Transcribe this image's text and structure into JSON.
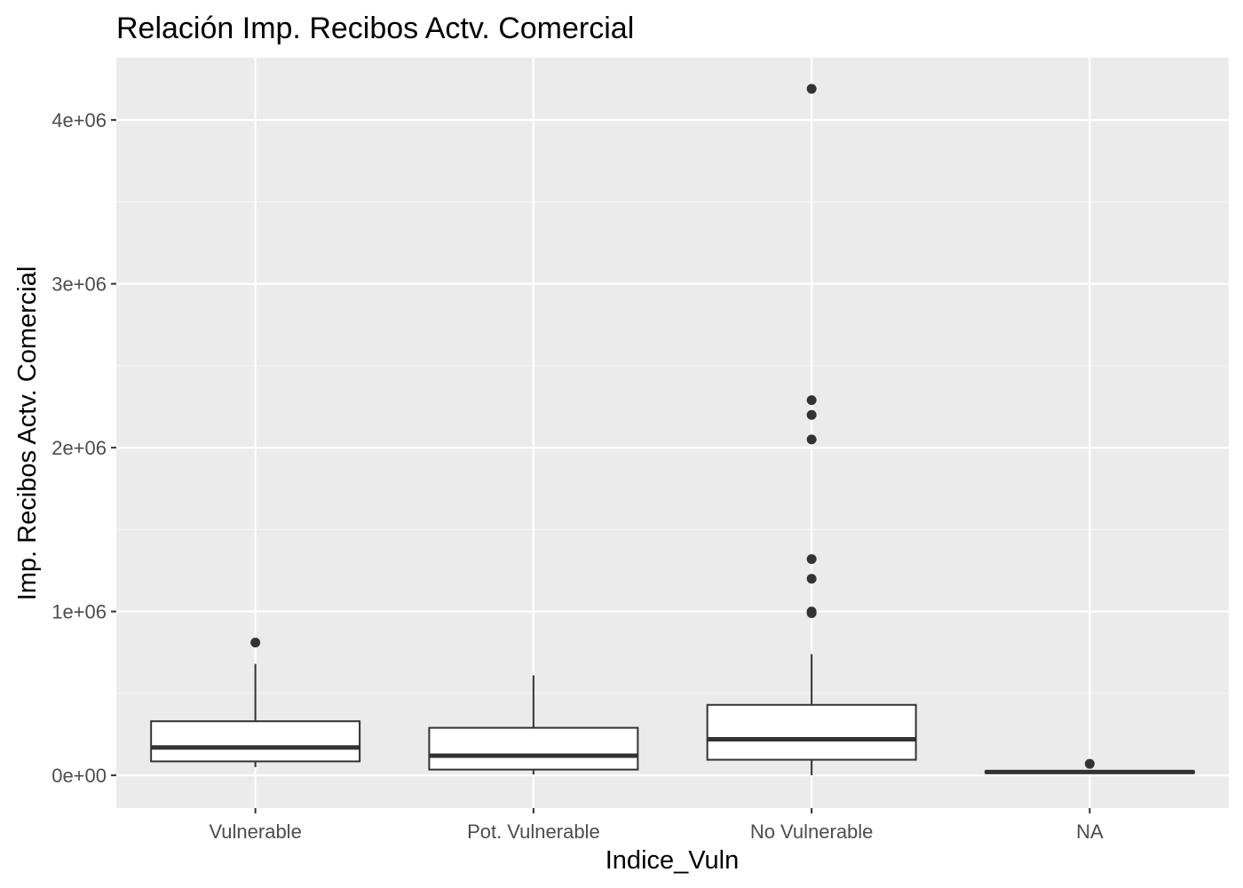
{
  "chart_data": {
    "type": "boxplot",
    "title": "Relación  Imp. Recibos Actv. Comercial",
    "xlabel": "Indice_Vuln",
    "ylabel": "Imp. Recibos Actv. Comercial",
    "categories": [
      "Vulnerable",
      "Pot. Vulnerable",
      "No Vulnerable",
      "NA"
    ],
    "y_ticks": [
      0,
      1000000,
      2000000,
      3000000,
      4000000
    ],
    "y_tick_labels": [
      "0e+00",
      "1e+06",
      "2e+06",
      "3e+06",
      "4e+06"
    ],
    "ylim": [
      -200000,
      4380000
    ],
    "grid": true,
    "legend": "none",
    "boxes": [
      {
        "category": "Vulnerable",
        "whisker_low": 50000,
        "q1": 85000,
        "median": 170000,
        "q3": 330000,
        "whisker_high": 680000,
        "outliers": [
          810000
        ]
      },
      {
        "category": "Pot. Vulnerable",
        "whisker_low": 5000,
        "q1": 35000,
        "median": 120000,
        "q3": 290000,
        "whisker_high": 610000,
        "outliers": []
      },
      {
        "category": "No Vulnerable",
        "whisker_low": 0,
        "q1": 95000,
        "median": 220000,
        "q3": 430000,
        "whisker_high": 740000,
        "outliers": [
          990000,
          1000000,
          1200000,
          1320000,
          2050000,
          2200000,
          2290000,
          4190000
        ]
      },
      {
        "category": "NA",
        "whisker_low": 15000,
        "q1": 15000,
        "median": 20000,
        "q3": 25000,
        "whisker_high": 25000,
        "outliers": [
          70000
        ]
      }
    ],
    "colors": {
      "panel_background": "#EBEBEB",
      "grid_major": "#FFFFFF",
      "grid_minor": "#F5F5F5",
      "box_fill": "#FFFFFF",
      "box_line": "#333333",
      "tick_text": "#4D4D4D",
      "axis_title_text": "#000000"
    }
  }
}
